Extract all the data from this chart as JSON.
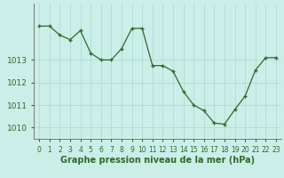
{
  "x": [
    0,
    1,
    2,
    3,
    4,
    5,
    6,
    7,
    8,
    9,
    10,
    11,
    12,
    13,
    14,
    15,
    16,
    17,
    18,
    19,
    20,
    21,
    22,
    23
  ],
  "y": [
    1014.5,
    1014.5,
    1014.1,
    1013.9,
    1014.3,
    1013.3,
    1013.0,
    1013.0,
    1013.5,
    1014.4,
    1014.4,
    1012.75,
    1012.75,
    1012.5,
    1011.6,
    1011.0,
    1010.75,
    1010.2,
    1010.15,
    1010.8,
    1011.4,
    1012.55,
    1013.1,
    1013.1
  ],
  "line_color": "#2d6a2d",
  "marker": "+",
  "marker_size": 3,
  "marker_lw": 1.0,
  "line_width": 0.9,
  "bg_color": "#cceee8",
  "grid_color": "#aad8d0",
  "grid_lw": 0.5,
  "xlabel": "Graphe pression niveau de la mer (hPa)",
  "xlabel_fontsize": 7,
  "ylabel_fontsize": 6.5,
  "tick_fontsize": 5.5,
  "ylim": [
    1009.5,
    1015.5
  ],
  "xlim": [
    -0.5,
    23.5
  ],
  "yticks": [
    1010,
    1011,
    1012,
    1013
  ],
  "face_color": "#cceee8",
  "spine_color": "#666666",
  "tick_color": "#2d6a2d",
  "label_color": "#2d6a2d"
}
